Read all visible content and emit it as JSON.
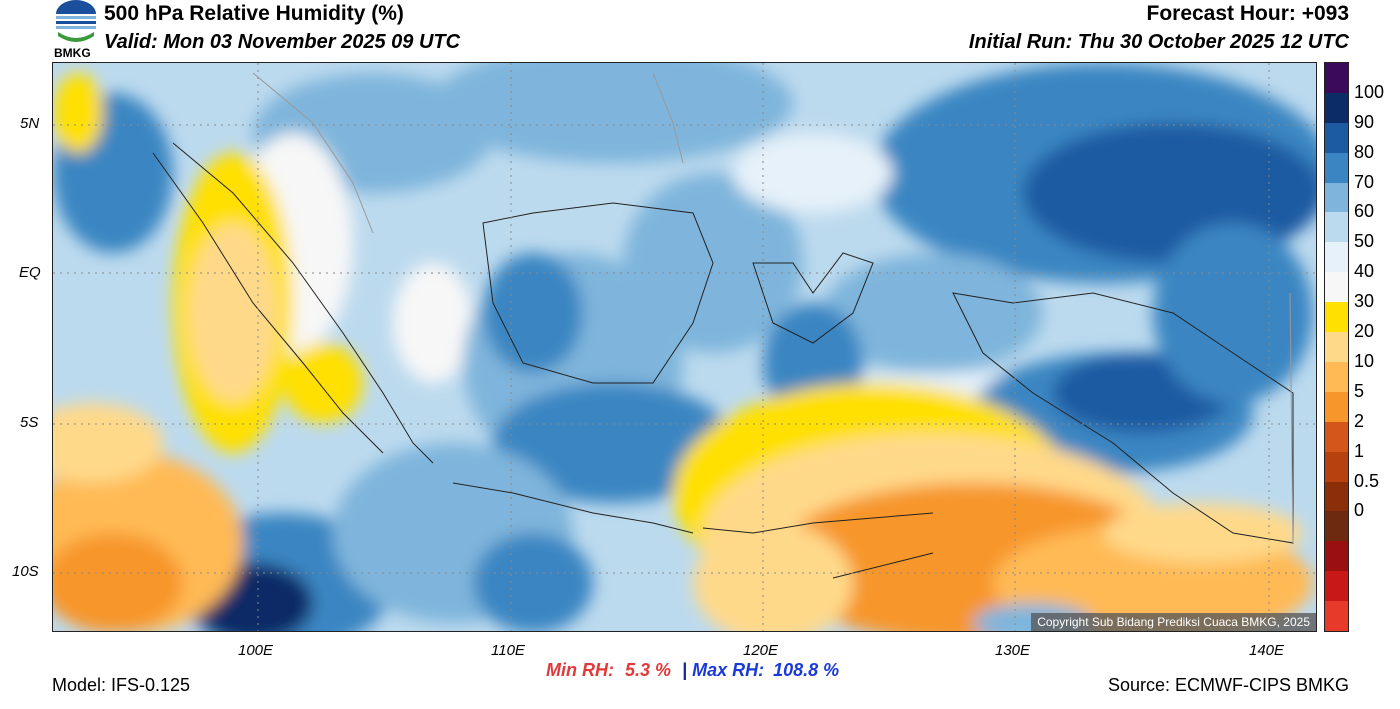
{
  "header": {
    "title": "500 hPa Relative Humidity (%)",
    "valid": "Valid: Mon 03 November 2025 09 UTC",
    "forecast_hour": "Forecast Hour: +093",
    "initial_run": "Initial Run: Thu 30 October 2025 12 UTC",
    "logo_text": "BMKG"
  },
  "map": {
    "lat_labels": [
      "5N",
      "EQ",
      "5S",
      "10S"
    ],
    "lon_labels": [
      "100E",
      "110E",
      "120E",
      "130E",
      "140E"
    ],
    "copyright": "Copyright Sub Bidang Prediksi Cuaca BMKG, 2025"
  },
  "colorbar": {
    "labels": [
      "100",
      "90",
      "80",
      "70",
      "60",
      "50",
      "40",
      "30",
      "20",
      "10",
      "5",
      "2",
      "1",
      "0.5",
      "0"
    ],
    "colors": [
      "#3b0a5a",
      "#0b2c66",
      "#1c5aa2",
      "#3b86c2",
      "#7fb5dc",
      "#bcdaee",
      "#e6f1f9",
      "#f7f7f7",
      "#ffe000",
      "#ffd98a",
      "#ffba55",
      "#f7962a",
      "#d4561a",
      "#b8420f",
      "#8b2f0a",
      "#6e2a10",
      "#9a1010",
      "#c81818",
      "#e83a2a"
    ]
  },
  "footer": {
    "model": "Model: IFS-0.125",
    "min_label": "Min RH:",
    "min_value": "5.3 %",
    "separator": "|",
    "max_label": "Max RH:",
    "max_value": "108.8 %",
    "source": "Source: ECMWF-CIPS BMKG"
  }
}
